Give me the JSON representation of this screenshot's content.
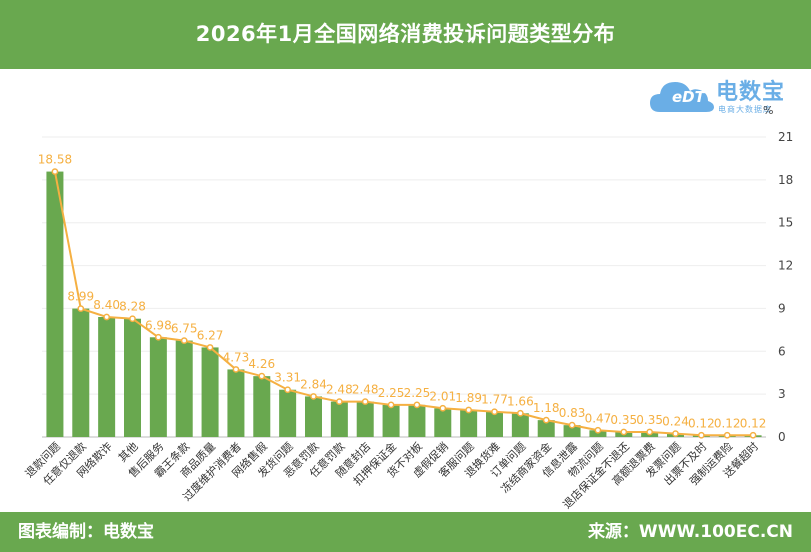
{
  "header": {
    "title": "2026年1月全国网络消费投诉问题类型分布"
  },
  "footer": {
    "left": "图表编制：电数宝",
    "right": "来源：WWW.100EC.CN"
  },
  "logo": {
    "main": "电数宝",
    "sub": "电商大数据库",
    "edt": "eDT"
  },
  "colors": {
    "bar": "#69a84f",
    "line": "#f5b042",
    "header": "#69a84f",
    "logo": "#6aaee6"
  },
  "chart_data": {
    "type": "bar",
    "title": "2026年1月全国网络消费投诉问题类型分布",
    "unit_label": "%",
    "categories": [
      "退款问题",
      "任意仅退款",
      "网络欺诈",
      "其他",
      "售后服务",
      "霸王条款",
      "商品质量",
      "过度维护消费者",
      "网络售假",
      "发货问题",
      "恶意罚款",
      "任意罚款",
      "随意封店",
      "扣押保证金",
      "货不对板",
      "虚假促销",
      "客服问题",
      "退换货难",
      "订单问题",
      "冻结商家资金",
      "信息泄露",
      "物流问题",
      "退店保证金不退还",
      "高额退票费",
      "发票问题",
      "出票不及时",
      "强制运费险",
      "送餐超时"
    ],
    "values": [
      18.58,
      8.99,
      8.4,
      8.28,
      6.98,
      6.75,
      6.27,
      4.73,
      4.26,
      3.31,
      2.84,
      2.48,
      2.48,
      2.25,
      2.25,
      2.01,
      1.89,
      1.77,
      1.66,
      1.18,
      0.83,
      0.47,
      0.35,
      0.35,
      0.24,
      0.12,
      0.12,
      0.12
    ],
    "value_labels": [
      "18.58",
      "8.99",
      "8.40",
      "8.28",
      "6.98",
      "6.75",
      "6.27",
      "4.73",
      "4.26",
      "3.31",
      "2.84",
      "2.48",
      "2.48",
      "2.25",
      "2.25",
      "2.01",
      "1.89",
      "1.77",
      "1.66",
      "1.18",
      "0.83",
      "0.47",
      "0.35",
      "0.35",
      "0.24",
      "0.12",
      "0.12",
      "0.12"
    ],
    "y_ticks": [
      0,
      3,
      6,
      9,
      12,
      15,
      18,
      21
    ],
    "ylim": [
      0,
      21
    ],
    "y_axis_side": "right",
    "grid": true,
    "overlay_line": true
  }
}
